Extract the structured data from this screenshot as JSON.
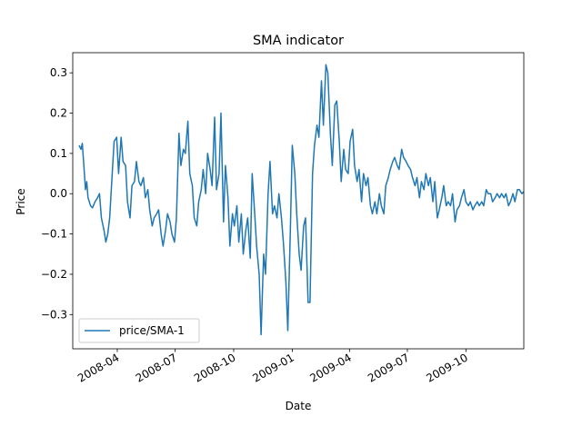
{
  "chart_data": {
    "type": "line",
    "title": "SMA indicator",
    "xlabel": "Date",
    "ylabel": "Price",
    "xlim": [
      "2008-01-22",
      "2009-12-31"
    ],
    "ylim": [
      -0.385,
      0.35
    ],
    "x_ticks": [
      "2008-04",
      "2008-07",
      "2008-10",
      "2009-01",
      "2009-04",
      "2009-07",
      "2009-10"
    ],
    "y_ticks": [
      -0.3,
      -0.2,
      -0.1,
      0.0,
      0.1,
      0.2,
      0.3
    ],
    "y_tick_labels": [
      "−0.3",
      "−0.2",
      "−0.1",
      "0.0",
      "0.1",
      "0.2",
      "0.3"
    ],
    "grid": false,
    "legend": {
      "placement": "lower-left"
    },
    "series": [
      {
        "name": "price/SMA-1",
        "color": "#1f77b4",
        "points": [
          [
            "2008-02-01",
            0.12
          ],
          [
            "2008-02-04",
            0.11
          ],
          [
            "2008-02-06",
            0.125
          ],
          [
            "2008-02-08",
            0.08
          ],
          [
            "2008-02-11",
            0.01
          ],
          [
            "2008-02-13",
            0.03
          ],
          [
            "2008-02-15",
            -0.01
          ],
          [
            "2008-02-19",
            -0.03
          ],
          [
            "2008-02-22",
            -0.035
          ],
          [
            "2008-02-26",
            -0.02
          ],
          [
            "2008-03-01",
            -0.01
          ],
          [
            "2008-03-04",
            0.0
          ],
          [
            "2008-03-07",
            -0.06
          ],
          [
            "2008-03-11",
            -0.09
          ],
          [
            "2008-03-14",
            -0.12
          ],
          [
            "2008-03-17",
            -0.1
          ],
          [
            "2008-03-20",
            -0.06
          ],
          [
            "2008-03-24",
            0.05
          ],
          [
            "2008-03-27",
            0.13
          ],
          [
            "2008-03-31",
            0.14
          ],
          [
            "2008-04-03",
            0.05
          ],
          [
            "2008-04-07",
            0.14
          ],
          [
            "2008-04-10",
            0.08
          ],
          [
            "2008-04-14",
            0.07
          ],
          [
            "2008-04-17",
            -0.02
          ],
          [
            "2008-04-21",
            -0.06
          ],
          [
            "2008-04-24",
            0.02
          ],
          [
            "2008-04-28",
            0.03
          ],
          [
            "2008-05-01",
            0.08
          ],
          [
            "2008-05-05",
            0.03
          ],
          [
            "2008-05-08",
            0.02
          ],
          [
            "2008-05-12",
            0.04
          ],
          [
            "2008-05-15",
            -0.01
          ],
          [
            "2008-05-19",
            0.01
          ],
          [
            "2008-05-22",
            -0.04
          ],
          [
            "2008-05-26",
            -0.08
          ],
          [
            "2008-05-29",
            -0.06
          ],
          [
            "2008-06-02",
            -0.05
          ],
          [
            "2008-06-05",
            -0.04
          ],
          [
            "2008-06-09",
            -0.1
          ],
          [
            "2008-06-12",
            -0.13
          ],
          [
            "2008-06-16",
            -0.09
          ],
          [
            "2008-06-19",
            -0.05
          ],
          [
            "2008-06-23",
            -0.07
          ],
          [
            "2008-06-26",
            -0.1
          ],
          [
            "2008-06-30",
            -0.12
          ],
          [
            "2008-07-03",
            -0.06
          ],
          [
            "2008-07-07",
            0.15
          ],
          [
            "2008-07-10",
            0.07
          ],
          [
            "2008-07-14",
            0.11
          ],
          [
            "2008-07-17",
            0.1
          ],
          [
            "2008-07-21",
            0.18
          ],
          [
            "2008-07-24",
            0.05
          ],
          [
            "2008-07-28",
            0.02
          ],
          [
            "2008-07-31",
            -0.06
          ],
          [
            "2008-08-04",
            -0.08
          ],
          [
            "2008-08-07",
            -0.02
          ],
          [
            "2008-08-11",
            0.01
          ],
          [
            "2008-08-14",
            0.06
          ],
          [
            "2008-08-18",
            0.0
          ],
          [
            "2008-08-21",
            0.1
          ],
          [
            "2008-08-25",
            0.06
          ],
          [
            "2008-08-28",
            0.02
          ],
          [
            "2008-09-01",
            0.19
          ],
          [
            "2008-09-04",
            0.01
          ],
          [
            "2008-09-08",
            0.05
          ],
          [
            "2008-09-11",
            0.2
          ],
          [
            "2008-09-15",
            -0.07
          ],
          [
            "2008-09-18",
            0.07
          ],
          [
            "2008-09-22",
            -0.01
          ],
          [
            "2008-09-25",
            -0.13
          ],
          [
            "2008-09-29",
            -0.05
          ],
          [
            "2008-10-02",
            -0.08
          ],
          [
            "2008-10-06",
            -0.03
          ],
          [
            "2008-10-09",
            -0.12
          ],
          [
            "2008-10-13",
            -0.05
          ],
          [
            "2008-10-16",
            -0.15
          ],
          [
            "2008-10-20",
            -0.09
          ],
          [
            "2008-10-23",
            -0.06
          ],
          [
            "2008-10-27",
            -0.16
          ],
          [
            "2008-10-30",
            0.05
          ],
          [
            "2008-11-03",
            -0.05
          ],
          [
            "2008-11-06",
            -0.13
          ],
          [
            "2008-11-10",
            -0.2
          ],
          [
            "2008-11-13",
            -0.35
          ],
          [
            "2008-11-17",
            -0.15
          ],
          [
            "2008-11-20",
            -0.2
          ],
          [
            "2008-11-24",
            0.0
          ],
          [
            "2008-11-27",
            0.08
          ],
          [
            "2008-12-01",
            -0.05
          ],
          [
            "2008-12-04",
            -0.03
          ],
          [
            "2008-12-08",
            -0.06
          ],
          [
            "2008-12-11",
            0.0
          ],
          [
            "2008-12-15",
            -0.06
          ],
          [
            "2008-12-18",
            -0.12
          ],
          [
            "2008-12-22",
            -0.22
          ],
          [
            "2008-12-25",
            -0.34
          ],
          [
            "2008-12-29",
            -0.09
          ],
          [
            "2009-01-01",
            0.12
          ],
          [
            "2009-01-05",
            0.05
          ],
          [
            "2009-01-08",
            -0.05
          ],
          [
            "2009-01-12",
            -0.15
          ],
          [
            "2009-01-15",
            -0.19
          ],
          [
            "2009-01-19",
            -0.08
          ],
          [
            "2009-01-22",
            -0.06
          ],
          [
            "2009-01-26",
            -0.27
          ],
          [
            "2009-01-29",
            -0.27
          ],
          [
            "2009-02-02",
            0.05
          ],
          [
            "2009-02-05",
            0.12
          ],
          [
            "2009-02-09",
            0.17
          ],
          [
            "2009-02-12",
            0.14
          ],
          [
            "2009-02-16",
            0.28
          ],
          [
            "2009-02-19",
            0.17
          ],
          [
            "2009-02-23",
            0.32
          ],
          [
            "2009-02-26",
            0.3
          ],
          [
            "2009-03-02",
            0.15
          ],
          [
            "2009-03-05",
            0.07
          ],
          [
            "2009-03-09",
            0.22
          ],
          [
            "2009-03-12",
            0.23
          ],
          [
            "2009-03-16",
            0.13
          ],
          [
            "2009-03-19",
            0.03
          ],
          [
            "2009-03-23",
            0.11
          ],
          [
            "2009-03-26",
            0.06
          ],
          [
            "2009-03-30",
            0.05
          ],
          [
            "2009-04-02",
            0.13
          ],
          [
            "2009-04-06",
            0.16
          ],
          [
            "2009-04-09",
            0.07
          ],
          [
            "2009-04-13",
            0.03
          ],
          [
            "2009-04-16",
            0.06
          ],
          [
            "2009-04-20",
            -0.02
          ],
          [
            "2009-04-23",
            0.05
          ],
          [
            "2009-04-27",
            0.02
          ],
          [
            "2009-04-30",
            0.04
          ],
          [
            "2009-05-04",
            -0.03
          ],
          [
            "2009-05-07",
            -0.05
          ],
          [
            "2009-05-11",
            -0.02
          ],
          [
            "2009-05-14",
            -0.05
          ],
          [
            "2009-05-18",
            0.0
          ],
          [
            "2009-05-21",
            -0.03
          ],
          [
            "2009-05-25",
            -0.05
          ],
          [
            "2009-05-28",
            0.02
          ],
          [
            "2009-06-01",
            0.04
          ],
          [
            "2009-06-04",
            0.06
          ],
          [
            "2009-06-08",
            0.08
          ],
          [
            "2009-06-11",
            0.09
          ],
          [
            "2009-06-15",
            0.07
          ],
          [
            "2009-06-18",
            0.06
          ],
          [
            "2009-06-22",
            0.11
          ],
          [
            "2009-06-25",
            0.09
          ],
          [
            "2009-06-29",
            0.08
          ],
          [
            "2009-07-02",
            0.07
          ],
          [
            "2009-07-06",
            0.06
          ],
          [
            "2009-07-09",
            0.04
          ],
          [
            "2009-07-13",
            0.02
          ],
          [
            "2009-07-16",
            0.04
          ],
          [
            "2009-07-20",
            -0.01
          ],
          [
            "2009-07-23",
            0.03
          ],
          [
            "2009-07-27",
            0.01
          ],
          [
            "2009-07-30",
            0.05
          ],
          [
            "2009-08-03",
            0.02
          ],
          [
            "2009-08-06",
            0.04
          ],
          [
            "2009-08-10",
            -0.02
          ],
          [
            "2009-08-13",
            0.03
          ],
          [
            "2009-08-17",
            -0.06
          ],
          [
            "2009-08-20",
            -0.04
          ],
          [
            "2009-08-24",
            -0.01
          ],
          [
            "2009-08-27",
            0.02
          ],
          [
            "2009-08-31",
            -0.03
          ],
          [
            "2009-09-03",
            -0.02
          ],
          [
            "2009-09-07",
            -0.03
          ],
          [
            "2009-09-10",
            0.0
          ],
          [
            "2009-09-14",
            -0.07
          ],
          [
            "2009-09-17",
            -0.04
          ],
          [
            "2009-09-21",
            -0.03
          ],
          [
            "2009-09-24",
            -0.01
          ],
          [
            "2009-09-28",
            0.01
          ],
          [
            "2009-10-01",
            -0.02
          ],
          [
            "2009-10-05",
            -0.03
          ],
          [
            "2009-10-08",
            -0.02
          ],
          [
            "2009-10-12",
            -0.04
          ],
          [
            "2009-10-15",
            -0.03
          ],
          [
            "2009-10-19",
            -0.02
          ],
          [
            "2009-10-22",
            -0.03
          ],
          [
            "2009-10-26",
            -0.02
          ],
          [
            "2009-10-29",
            -0.03
          ],
          [
            "2009-11-02",
            0.01
          ],
          [
            "2009-11-05",
            0.0
          ],
          [
            "2009-11-09",
            0.0
          ],
          [
            "2009-11-12",
            -0.02
          ],
          [
            "2009-11-16",
            -0.01
          ],
          [
            "2009-11-19",
            0.0
          ],
          [
            "2009-11-23",
            -0.01
          ],
          [
            "2009-11-26",
            0.0
          ],
          [
            "2009-11-30",
            -0.01
          ],
          [
            "2009-12-03",
            0.0
          ],
          [
            "2009-12-07",
            -0.03
          ],
          [
            "2009-12-10",
            -0.02
          ],
          [
            "2009-12-14",
            0.0
          ],
          [
            "2009-12-17",
            -0.02
          ],
          [
            "2009-12-21",
            0.01
          ],
          [
            "2009-12-24",
            0.01
          ],
          [
            "2009-12-28",
            0.0
          ],
          [
            "2009-12-31",
            0.005
          ]
        ]
      }
    ]
  }
}
